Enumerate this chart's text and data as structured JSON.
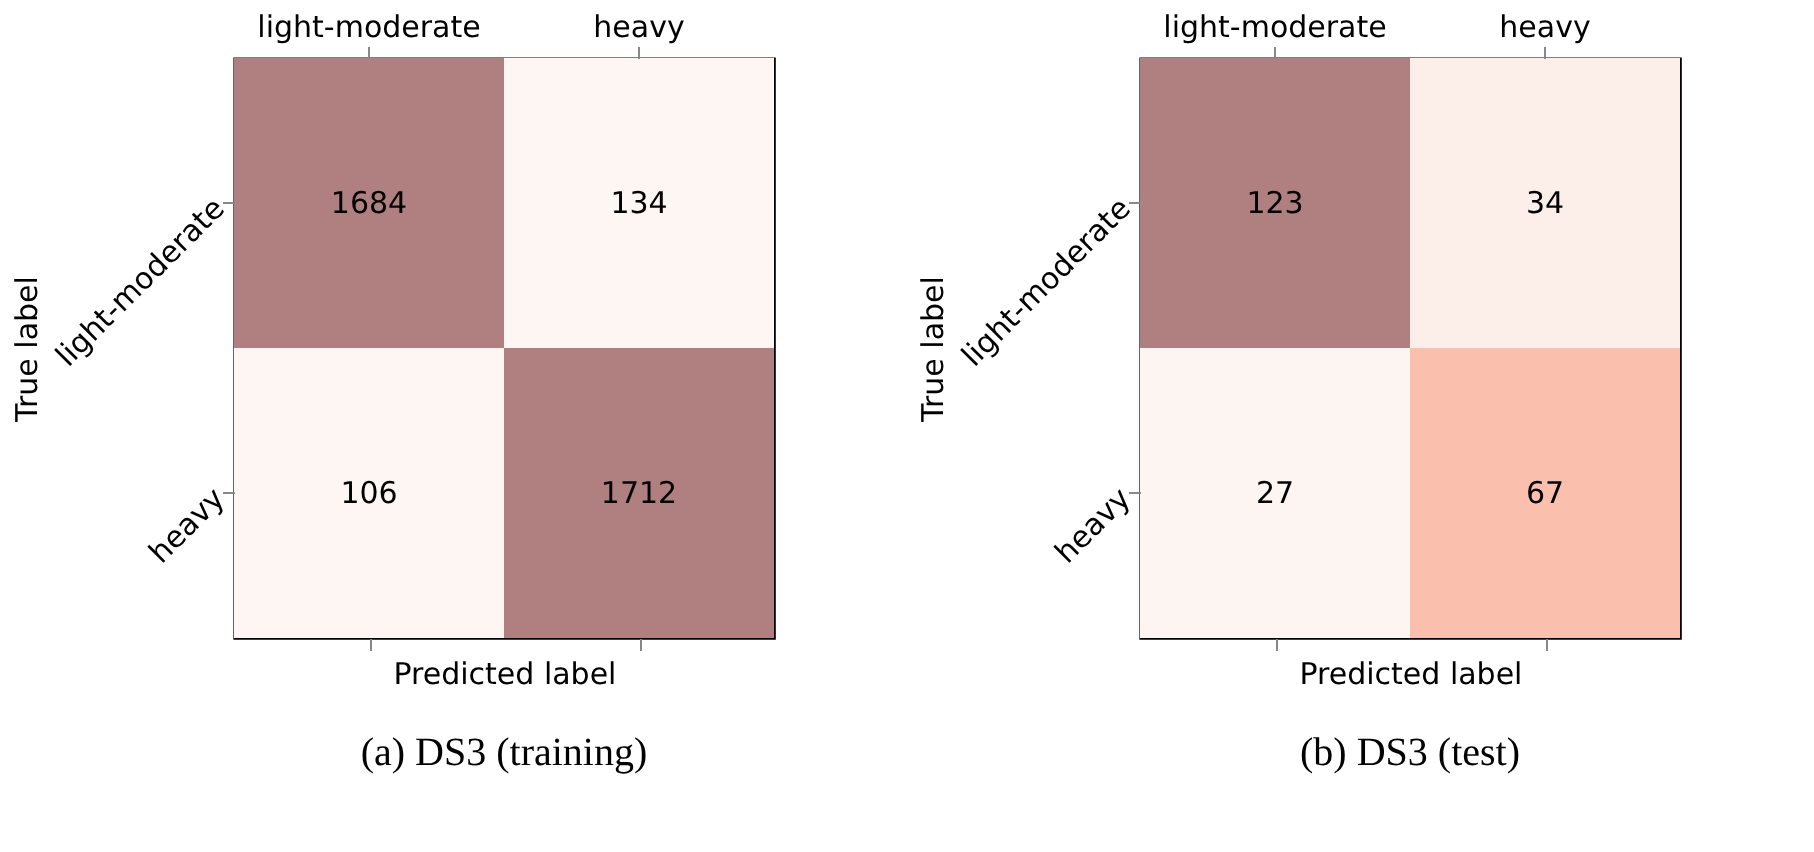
{
  "chart_data": [
    {
      "type": "heatmap",
      "title": "(a) DS3 (training)",
      "data_labels": true,
      "xlabel": "Predicted label",
      "ylabel": "True label",
      "categories": [
        "light-moderate",
        "heavy"
      ],
      "y_categories": [
        "light-moderate",
        "heavy"
      ],
      "cells": [
        [
          1684,
          134
        ],
        [
          106,
          1712
        ]
      ],
      "colors": [
        [
          "#b07f80",
          "#fdf6f2"
        ],
        [
          "#fdf6f2",
          "#b07f80"
        ]
      ]
    },
    {
      "type": "heatmap",
      "title": "(b) DS3 (test)",
      "data_labels": true,
      "xlabel": "Predicted label",
      "ylabel": "True label",
      "categories": [
        "light-moderate",
        "heavy"
      ],
      "y_categories": [
        "light-moderate",
        "heavy"
      ],
      "cells": [
        [
          123,
          34
        ],
        [
          27,
          67
        ]
      ],
      "colors": [
        [
          "#b07f80",
          "#fcefe9"
        ],
        [
          "#fdf5f1",
          "#fbbfae"
        ]
      ]
    }
  ]
}
